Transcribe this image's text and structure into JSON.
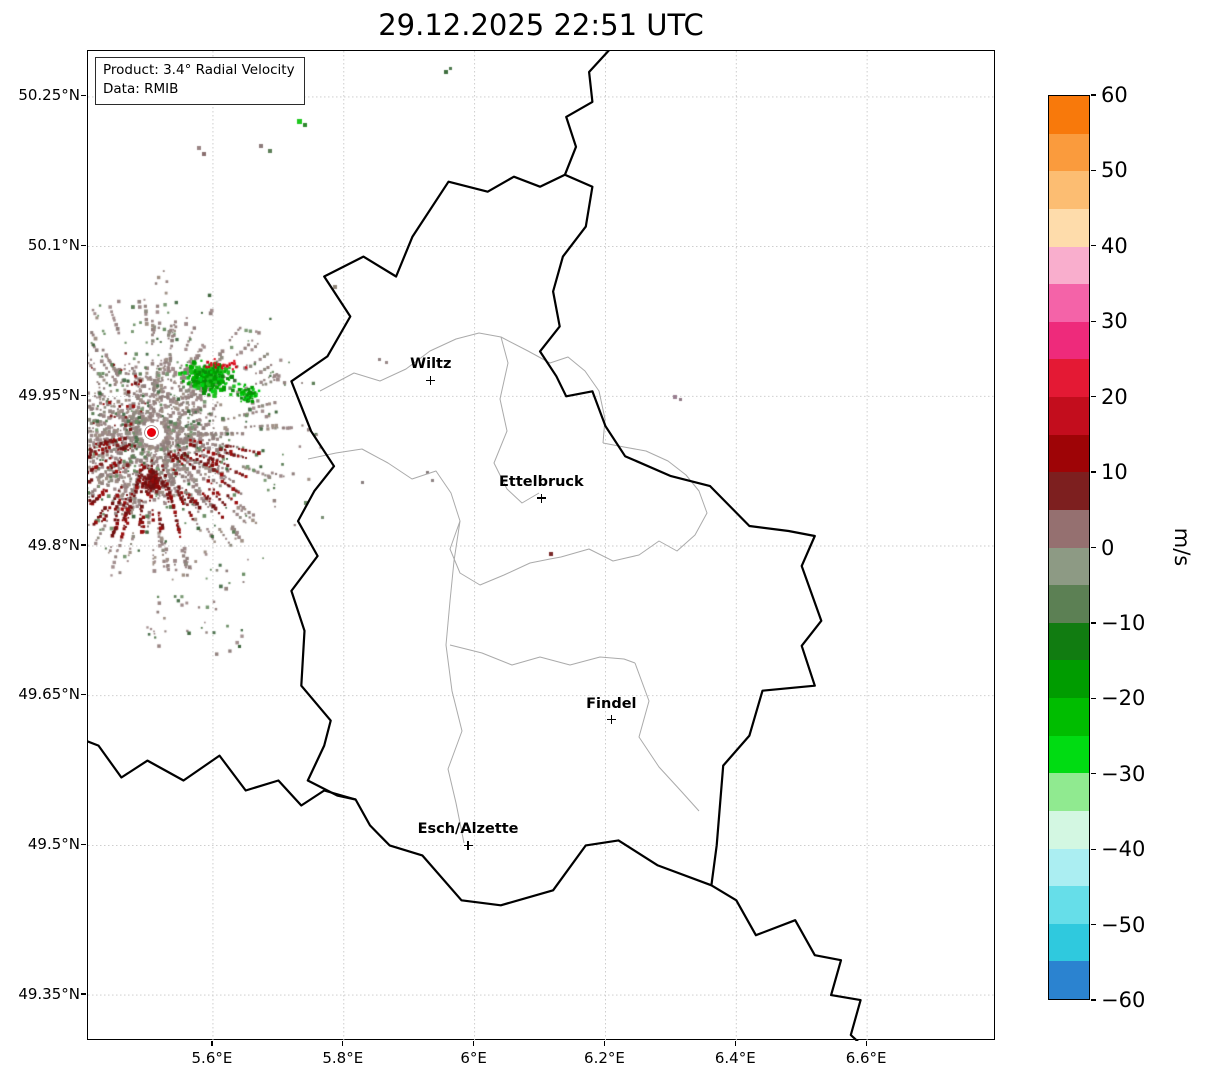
{
  "figure": {
    "title": "29.12.2025 22:51 UTC",
    "info_box": {
      "product_line": "Product: 3.4° Radial Velocity",
      "data_line": "Data: RMIB"
    }
  },
  "axes": {
    "x_ticks": [
      {
        "label": "5.6°E",
        "lon": 5.6
      },
      {
        "label": "5.8°E",
        "lon": 5.8
      },
      {
        "label": "6°E",
        "lon": 6.0
      },
      {
        "label": "6.2°E",
        "lon": 6.2
      },
      {
        "label": "6.4°E",
        "lon": 6.4
      },
      {
        "label": "6.6°E",
        "lon": 6.6
      }
    ],
    "y_ticks": [
      {
        "label": "50.25°N",
        "lat": 50.25
      },
      {
        "label": "50.1°N",
        "lat": 50.1
      },
      {
        "label": "49.95°N",
        "lat": 49.95
      },
      {
        "label": "49.8°N",
        "lat": 49.8
      },
      {
        "label": "49.65°N",
        "lat": 49.65
      },
      {
        "label": "49.5°N",
        "lat": 49.5
      },
      {
        "label": "49.35°N",
        "lat": 49.35
      }
    ]
  },
  "colorbar": {
    "label": "m/s",
    "max": 60,
    "min": -60,
    "tick_labels": [
      "60",
      "50",
      "40",
      "30",
      "20",
      "10",
      "0",
      "−10",
      "−20",
      "−30",
      "−40",
      "−50",
      "−60"
    ],
    "tick_values": [
      60,
      50,
      40,
      30,
      20,
      10,
      0,
      -10,
      -20,
      -30,
      -40,
      -50,
      -60
    ],
    "segment_colors_top_to_bottom": [
      "#f8790b",
      "#fa9b3d",
      "#fcbd72",
      "#fedcab",
      "#f9aecd",
      "#f463a8",
      "#ee2a7b",
      "#e41934",
      "#c30d1d",
      "#9e0406",
      "#7d1f1f",
      "#957070",
      "#8d9a84",
      "#5c8054",
      "#117c11",
      "#009c00",
      "#00bd00",
      "#00dc12",
      "#90ea90",
      "#d3f7e2",
      "#abeef2",
      "#66dee9",
      "#2fc9de",
      "#2b83d0"
    ]
  },
  "map": {
    "cities": [
      {
        "name": "Wiltz",
        "lon": 5.933,
        "lat": 49.966
      },
      {
        "name": "Ettelbruck",
        "lon": 6.102,
        "lat": 49.848
      },
      {
        "name": "Findel",
        "lon": 6.209,
        "lat": 49.626
      },
      {
        "name": "Esch/Alzette",
        "lon": 5.99,
        "lat": 49.5
      }
    ],
    "radar_site": {
      "lon": 5.506,
      "lat": 49.914
    }
  },
  "chart_data": {
    "type": "heatmap",
    "title": "29.12.2025 22:51 UTC",
    "product": "3.4° Radial Velocity",
    "data_source": "RMIB",
    "units": "m/s",
    "value_range": [
      -60,
      60
    ],
    "colorbar_ticks": [
      60,
      50,
      40,
      30,
      20,
      10,
      0,
      -10,
      -20,
      -30,
      -40,
      -50,
      -60
    ],
    "x_axis": {
      "ticks_deg_east": [
        5.6,
        5.8,
        6.0,
        6.2,
        6.4,
        6.6
      ],
      "range_deg_east": [
        5.41,
        6.8
      ]
    },
    "y_axis": {
      "ticks_deg_north": [
        50.25,
        50.1,
        49.95,
        49.8,
        49.65,
        49.5,
        49.35
      ],
      "range_deg_north": [
        49.3,
        50.3
      ]
    },
    "radar_site_deg": {
      "lon_east": 5.506,
      "lat_north": 49.914
    },
    "echo_summary": [
      {
        "region": "lobe NE of radar site",
        "velocity_sign": "negative (toward radar)",
        "approx_values_ms": [
          -10,
          -30
        ],
        "color": "bright green"
      },
      {
        "region": "lobe S/SW of radar site",
        "velocity_sign": "positive (away from radar)",
        "approx_values_ms": [
          10,
          25
        ],
        "color": "dark red"
      },
      {
        "region": "annulus within ~30 km of radar site",
        "velocity_sign": "near zero",
        "approx_values_ms": [
          -5,
          5
        ],
        "color": "gray"
      },
      {
        "region": "isolated distant speckles (N and E of site)",
        "velocity_sign": "mixed",
        "approx_values_ms": [
          -25,
          5
        ],
        "color": "green / gray"
      }
    ],
    "cities_marked": [
      "Wiltz",
      "Ettelbruck",
      "Findel",
      "Esch/Alzette"
    ],
    "grid": "dotted light gray at tick positions",
    "legend_position": "vertical colorbar right"
  }
}
